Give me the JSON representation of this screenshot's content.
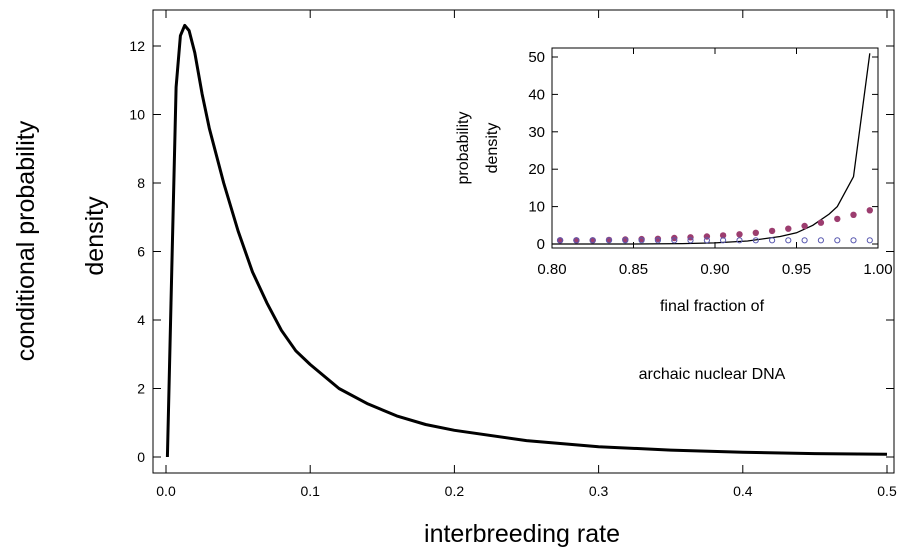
{
  "chart_data": [
    {
      "type": "line",
      "xlabel": "interbreeding rate",
      "ylabel_lines": [
        "conditional probability",
        "density"
      ],
      "xlim": [
        0,
        0.5
      ],
      "ylim": [
        0,
        12.6
      ],
      "x_ticks": [
        0.0,
        0.1,
        0.2,
        0.3,
        0.4,
        0.5
      ],
      "x_tick_labels": [
        "0.0",
        "0.1",
        "0.2",
        "0.3",
        "0.4",
        "0.5"
      ],
      "y_ticks": [
        0,
        2,
        4,
        6,
        8,
        10,
        12
      ],
      "y_tick_labels": [
        "0",
        "2",
        "4",
        "6",
        "8",
        "10",
        "12"
      ],
      "grid": false,
      "series": [
        {
          "color": "#000000",
          "x": [
            0.001,
            0.004,
            0.007,
            0.01,
            0.013,
            0.016,
            0.02,
            0.025,
            0.03,
            0.035,
            0.04,
            0.05,
            0.06,
            0.07,
            0.08,
            0.09,
            0.1,
            0.12,
            0.14,
            0.16,
            0.18,
            0.2,
            0.25,
            0.3,
            0.35,
            0.4,
            0.45,
            0.5
          ],
          "y": [
            0.0,
            5.5,
            10.8,
            12.3,
            12.6,
            12.45,
            11.8,
            10.6,
            9.6,
            8.8,
            8.0,
            6.6,
            5.4,
            4.5,
            3.7,
            3.1,
            2.7,
            2.0,
            1.55,
            1.2,
            0.95,
            0.78,
            0.48,
            0.3,
            0.2,
            0.14,
            0.1,
            0.08
          ]
        }
      ]
    },
    {
      "type": "line",
      "label_lines": [
        "final fraction of",
        "archaic nuclear DNA"
      ],
      "ylabel_lines": [
        "probability",
        "density"
      ],
      "xlim": [
        0.8,
        1.0
      ],
      "ylim": [
        0,
        52
      ],
      "x_ticks": [
        0.8,
        0.85,
        0.9,
        0.95,
        1.0
      ],
      "x_tick_labels": [
        "0.80",
        "0.85",
        "0.90",
        "0.95",
        "1.00"
      ],
      "y_ticks": [
        0,
        10,
        20,
        30,
        40,
        50
      ],
      "y_tick_labels": [
        "0",
        "10",
        "20",
        "30",
        "40",
        "50"
      ],
      "grid": false,
      "series": [
        {
          "style": "solid-line",
          "color": "#000000",
          "x": [
            0.8,
            0.85,
            0.88,
            0.9,
            0.92,
            0.94,
            0.95,
            0.96,
            0.97,
            0.975,
            0.985,
            0.995
          ],
          "y": [
            0.0,
            0.0,
            0.1,
            0.3,
            0.8,
            2.0,
            3.0,
            5.0,
            8.0,
            10.0,
            18.0,
            51.0
          ]
        },
        {
          "style": "filled-dots",
          "color": "#9c3d6f",
          "x": [
            0.805,
            0.815,
            0.825,
            0.835,
            0.845,
            0.855,
            0.865,
            0.875,
            0.885,
            0.895,
            0.905,
            0.915,
            0.925,
            0.935,
            0.945,
            0.955,
            0.965,
            0.975,
            0.985,
            0.995
          ],
          "y": [
            1.0,
            1.0,
            1.0,
            1.1,
            1.2,
            1.3,
            1.4,
            1.6,
            1.8,
            2.0,
            2.3,
            2.6,
            3.0,
            3.5,
            4.1,
            4.8,
            5.7,
            6.7,
            7.8,
            9.0
          ]
        },
        {
          "style": "open-dots",
          "color": "#5a5ab0",
          "x": [
            0.805,
            0.815,
            0.825,
            0.835,
            0.845,
            0.855,
            0.865,
            0.875,
            0.885,
            0.895,
            0.905,
            0.915,
            0.925,
            0.935,
            0.945,
            0.955,
            0.965,
            0.975,
            0.985,
            0.995
          ],
          "y": [
            1.0,
            1.0,
            1.0,
            1.0,
            1.0,
            1.0,
            1.0,
            1.0,
            1.0,
            1.0,
            1.0,
            1.0,
            1.0,
            1.0,
            1.0,
            1.0,
            1.0,
            1.0,
            1.0,
            1.0
          ]
        }
      ]
    }
  ]
}
